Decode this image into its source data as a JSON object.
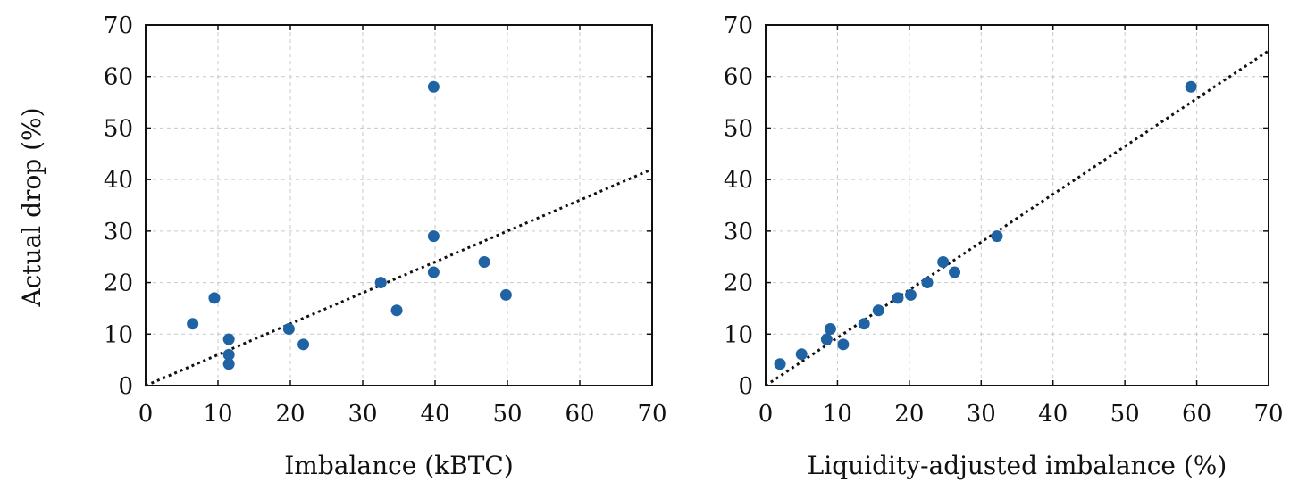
{
  "chart_data": [
    {
      "type": "scatter",
      "title": "",
      "xlabel": "Imbalance (kBTC)",
      "ylabel": "Actual drop (%)",
      "xlim": [
        0,
        70
      ],
      "ylim": [
        0,
        70
      ],
      "xticks": [
        "0",
        "10",
        "20",
        "30",
        "40",
        "50",
        "60",
        "70"
      ],
      "yticks": [
        "0",
        "10",
        "20",
        "30",
        "40",
        "50",
        "60",
        "70"
      ],
      "grid": true,
      "point_color": "#1f63a5",
      "series": [
        {
          "points": [
            [
              6.5,
              12
            ],
            [
              9.5,
              17
            ],
            [
              11.5,
              9
            ],
            [
              11.5,
              6
            ],
            [
              11.5,
              4.2
            ],
            [
              19.8,
              11
            ],
            [
              21.8,
              8
            ],
            [
              32.5,
              20
            ],
            [
              34.7,
              14.6
            ],
            [
              39.8,
              58
            ],
            [
              39.8,
              29
            ],
            [
              39.8,
              22
            ],
            [
              46.8,
              24
            ],
            [
              49.8,
              17.6
            ]
          ]
        }
      ],
      "fit_line": [
        [
          0,
          0
        ],
        [
          70,
          42
        ]
      ]
    },
    {
      "type": "scatter",
      "title": "",
      "xlabel": "Liquidity-adjusted imbalance (%)",
      "ylabel": "",
      "xlim": [
        0,
        70
      ],
      "ylim": [
        0,
        70
      ],
      "xticks": [
        "0",
        "10",
        "20",
        "30",
        "40",
        "50",
        "60",
        "70"
      ],
      "yticks": [
        "0",
        "10",
        "20",
        "30",
        "40",
        "50",
        "60",
        "70"
      ],
      "grid": true,
      "point_color": "#1f63a5",
      "series": [
        {
          "points": [
            [
              2.0,
              4.2
            ],
            [
              5.0,
              6.1
            ],
            [
              8.5,
              9
            ],
            [
              9.0,
              11
            ],
            [
              10.8,
              8
            ],
            [
              13.7,
              12
            ],
            [
              15.7,
              14.6
            ],
            [
              18.4,
              17
            ],
            [
              20.2,
              17.6
            ],
            [
              22.5,
              20
            ],
            [
              24.7,
              24
            ],
            [
              26.3,
              22
            ],
            [
              32.2,
              29
            ],
            [
              59.2,
              58
            ]
          ]
        }
      ],
      "fit_line": [
        [
          0,
          0
        ],
        [
          70,
          65
        ]
      ]
    }
  ]
}
